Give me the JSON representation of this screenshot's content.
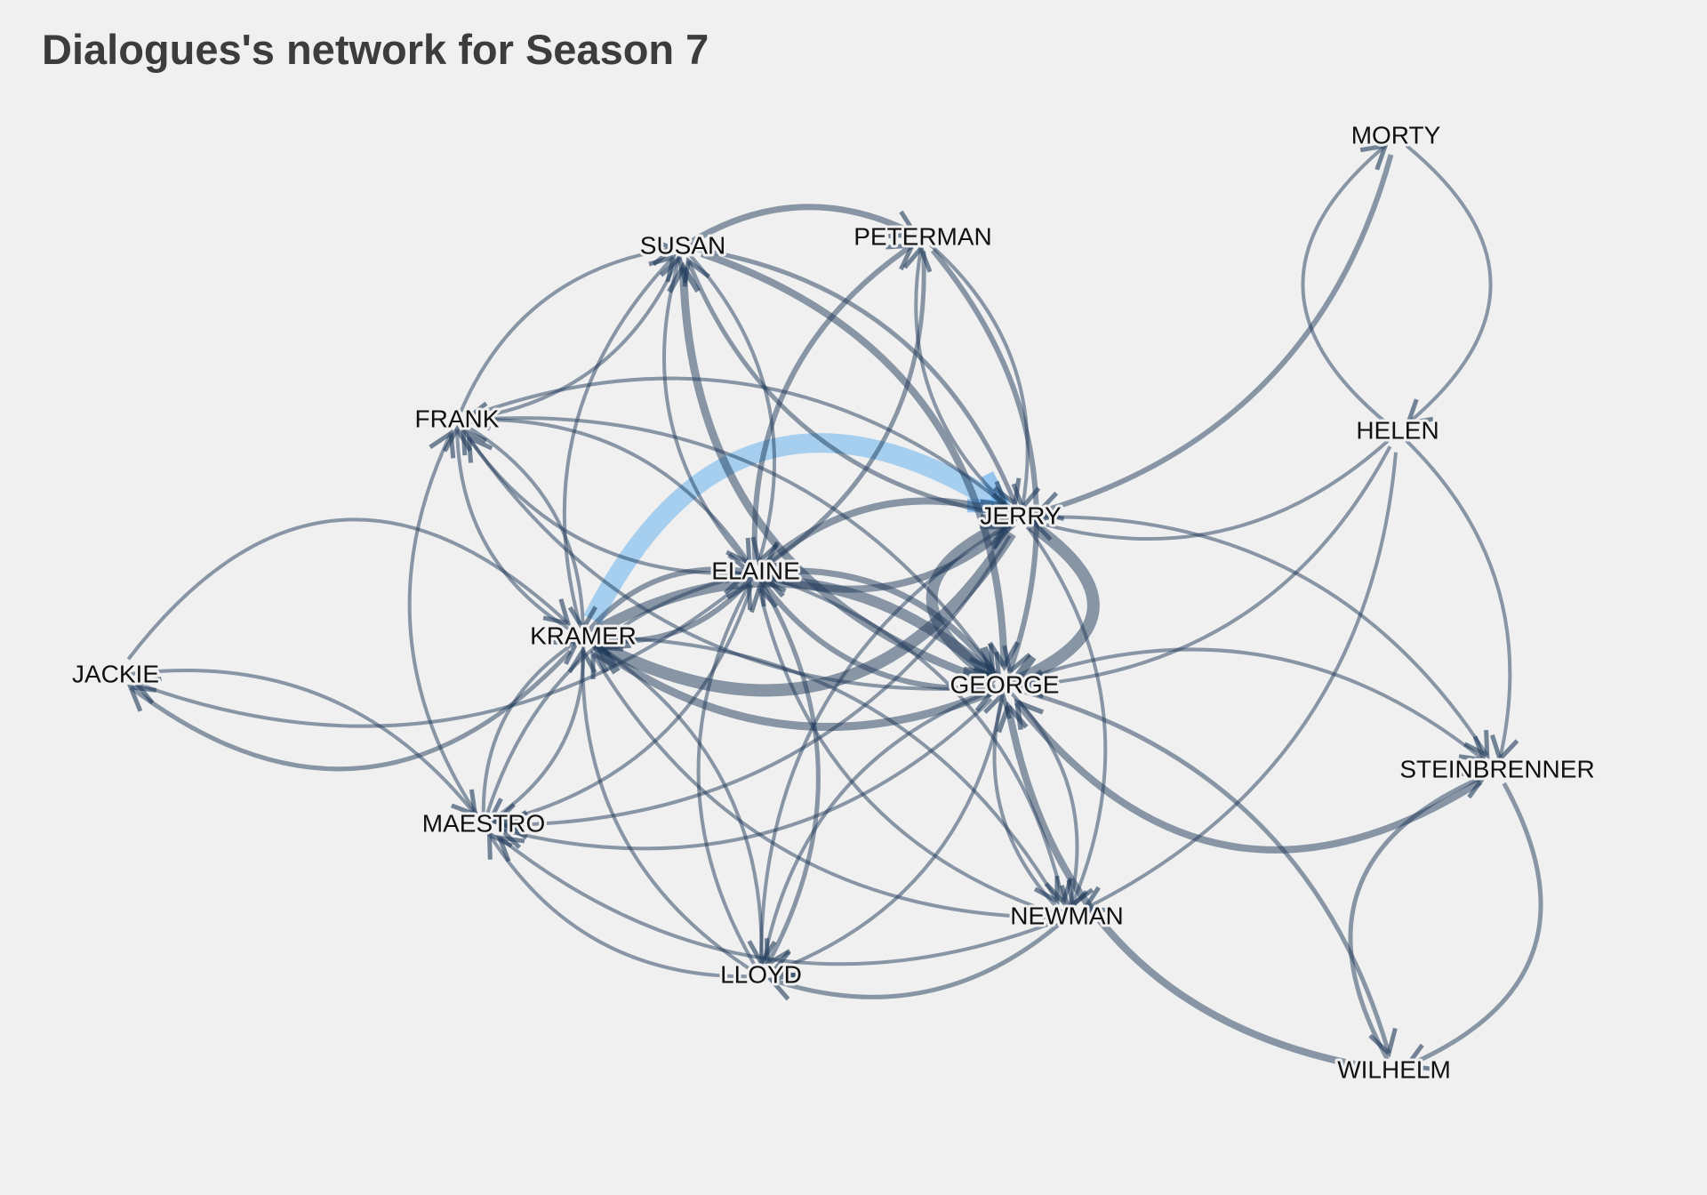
{
  "title": "Dialogues's network for Season 7",
  "colors": {
    "background": "#f0f0f0",
    "edge": "#1f3a5a",
    "highlight": "#4aa3ee",
    "label": "#111111",
    "title": "#3c3c3c"
  },
  "nodes": [
    {
      "id": "MORTY",
      "label": "MORTY"
    },
    {
      "id": "SUSAN",
      "label": "SUSAN"
    },
    {
      "id": "PETERMAN",
      "label": "PETERMAN"
    },
    {
      "id": "FRANK",
      "label": "FRANK"
    },
    {
      "id": "HELEN",
      "label": "HELEN"
    },
    {
      "id": "JERRY",
      "label": "JERRY"
    },
    {
      "id": "ELAINE",
      "label": "ELAINE"
    },
    {
      "id": "KRAMER",
      "label": "KRAMER"
    },
    {
      "id": "JACKIE",
      "label": "JACKIE"
    },
    {
      "id": "GEORGE",
      "label": "GEORGE"
    },
    {
      "id": "STEINBRENNER",
      "label": "STEINBRENNER"
    },
    {
      "id": "MAESTRO",
      "label": "MAESTRO"
    },
    {
      "id": "NEWMAN",
      "label": "NEWMAN"
    },
    {
      "id": "LLOYD",
      "label": "LLOYD"
    },
    {
      "id": "WILHELM",
      "label": "WILHELM"
    }
  ],
  "edges": [
    {
      "from": "KRAMER",
      "to": "JERRY",
      "weight": 22,
      "highlight": true
    },
    {
      "from": "JERRY",
      "to": "KRAMER",
      "weight": 14
    },
    {
      "from": "JERRY",
      "to": "GEORGE",
      "weight": 14
    },
    {
      "from": "GEORGE",
      "to": "JERRY",
      "weight": 13
    },
    {
      "from": "KRAMER",
      "to": "GEORGE",
      "weight": 12
    },
    {
      "from": "GEORGE",
      "to": "KRAMER",
      "weight": 9
    },
    {
      "from": "ELAINE",
      "to": "JERRY",
      "weight": 8
    },
    {
      "from": "JERRY",
      "to": "ELAINE",
      "weight": 8
    },
    {
      "from": "ELAINE",
      "to": "GEORGE",
      "weight": 7
    },
    {
      "from": "GEORGE",
      "to": "ELAINE",
      "weight": 6
    },
    {
      "from": "KRAMER",
      "to": "ELAINE",
      "weight": 6
    },
    {
      "from": "ELAINE",
      "to": "KRAMER",
      "weight": 6
    },
    {
      "from": "GEORGE",
      "to": "SUSAN",
      "weight": 9
    },
    {
      "from": "SUSAN",
      "to": "GEORGE",
      "weight": 8
    },
    {
      "from": "JERRY",
      "to": "SUSAN",
      "weight": 5
    },
    {
      "from": "SUSAN",
      "to": "JERRY",
      "weight": 5
    },
    {
      "from": "KRAMER",
      "to": "SUSAN",
      "weight": 4
    },
    {
      "from": "SUSAN",
      "to": "ELAINE",
      "weight": 4
    },
    {
      "from": "ELAINE",
      "to": "SUSAN",
      "weight": 4
    },
    {
      "from": "SUSAN",
      "to": "PETERMAN",
      "weight": 7
    },
    {
      "from": "ELAINE",
      "to": "PETERMAN",
      "weight": 6
    },
    {
      "from": "PETERMAN",
      "to": "ELAINE",
      "weight": 5
    },
    {
      "from": "PETERMAN",
      "to": "JERRY",
      "weight": 4
    },
    {
      "from": "JERRY",
      "to": "PETERMAN",
      "weight": 4
    },
    {
      "from": "PETERMAN",
      "to": "GEORGE",
      "weight": 6
    },
    {
      "from": "FRANK",
      "to": "SUSAN",
      "weight": 4
    },
    {
      "from": "SUSAN",
      "to": "FRANK",
      "weight": 4
    },
    {
      "from": "FRANK",
      "to": "JERRY",
      "weight": 4
    },
    {
      "from": "FRANK",
      "to": "KRAMER",
      "weight": 4
    },
    {
      "from": "KRAMER",
      "to": "FRANK",
      "weight": 4
    },
    {
      "from": "FRANK",
      "to": "ELAINE",
      "weight": 4
    },
    {
      "from": "ELAINE",
      "to": "FRANK",
      "weight": 4
    },
    {
      "from": "GEORGE",
      "to": "FRANK",
      "weight": 4
    },
    {
      "from": "FRANK",
      "to": "GEORGE",
      "weight": 4
    },
    {
      "from": "MORTY",
      "to": "HELEN",
      "weight": 4
    },
    {
      "from": "HELEN",
      "to": "MORTY",
      "weight": 4
    },
    {
      "from": "MORTY",
      "to": "JERRY",
      "weight": 6
    },
    {
      "from": "HELEN",
      "to": "JERRY",
      "weight": 4
    },
    {
      "from": "HELEN",
      "to": "GEORGE",
      "weight": 4
    },
    {
      "from": "HELEN",
      "to": "STEINBRENNER",
      "weight": 4
    },
    {
      "from": "HELEN",
      "to": "NEWMAN",
      "weight": 4
    },
    {
      "from": "JERRY",
      "to": "STEINBRENNER",
      "weight": 4
    },
    {
      "from": "GEORGE",
      "to": "STEINBRENNER",
      "weight": 4
    },
    {
      "from": "STEINBRENNER",
      "to": "GEORGE",
      "weight": 8
    },
    {
      "from": "STEINBRENNER",
      "to": "WILHELM",
      "weight": 5
    },
    {
      "from": "WILHELM",
      "to": "STEINBRENNER",
      "weight": 5
    },
    {
      "from": "WILHELM",
      "to": "GEORGE",
      "weight": 8
    },
    {
      "from": "GEORGE",
      "to": "WILHELM",
      "weight": 5
    },
    {
      "from": "JACKIE",
      "to": "KRAMER",
      "weight": 4
    },
    {
      "from": "KRAMER",
      "to": "JACKIE",
      "weight": 5
    },
    {
      "from": "JACKIE",
      "to": "MAESTRO",
      "weight": 4
    },
    {
      "from": "ELAINE",
      "to": "JACKIE",
      "weight": 4
    },
    {
      "from": "MAESTRO",
      "to": "ELAINE",
      "weight": 4
    },
    {
      "from": "ELAINE",
      "to": "MAESTRO",
      "weight": 4
    },
    {
      "from": "MAESTRO",
      "to": "KRAMER",
      "weight": 4
    },
    {
      "from": "KRAMER",
      "to": "MAESTRO",
      "weight": 4
    },
    {
      "from": "MAESTRO",
      "to": "FRANK",
      "weight": 4
    },
    {
      "from": "JERRY",
      "to": "MAESTRO",
      "weight": 4
    },
    {
      "from": "GEORGE",
      "to": "MAESTRO",
      "weight": 4
    },
    {
      "from": "NEWMAN",
      "to": "MAESTRO",
      "weight": 4
    },
    {
      "from": "LLOYD",
      "to": "MAESTRO",
      "weight": 4
    },
    {
      "from": "LLOYD",
      "to": "KRAMER",
      "weight": 4
    },
    {
      "from": "LLOYD",
      "to": "ELAINE",
      "weight": 4
    },
    {
      "from": "LLOYD",
      "to": "GEORGE",
      "weight": 4
    },
    {
      "from": "LLOYD",
      "to": "JERRY",
      "weight": 4
    },
    {
      "from": "ELAINE",
      "to": "LLOYD",
      "weight": 5
    },
    {
      "from": "GEORGE",
      "to": "LLOYD",
      "weight": 4
    },
    {
      "from": "KRAMER",
      "to": "LLOYD",
      "weight": 4
    },
    {
      "from": "NEWMAN",
      "to": "LLOYD",
      "weight": 5
    },
    {
      "from": "NEWMAN",
      "to": "KRAMER",
      "weight": 4
    },
    {
      "from": "NEWMAN",
      "to": "GEORGE",
      "weight": 4
    },
    {
      "from": "GEORGE",
      "to": "NEWMAN",
      "weight": 4
    },
    {
      "from": "JERRY",
      "to": "NEWMAN",
      "weight": 4
    },
    {
      "from": "ELAINE",
      "to": "NEWMAN",
      "weight": 4
    },
    {
      "from": "KRAMER",
      "to": "NEWMAN",
      "weight": 4
    },
    {
      "from": "NEWMAN",
      "to": "ELAINE",
      "weight": 4
    }
  ]
}
